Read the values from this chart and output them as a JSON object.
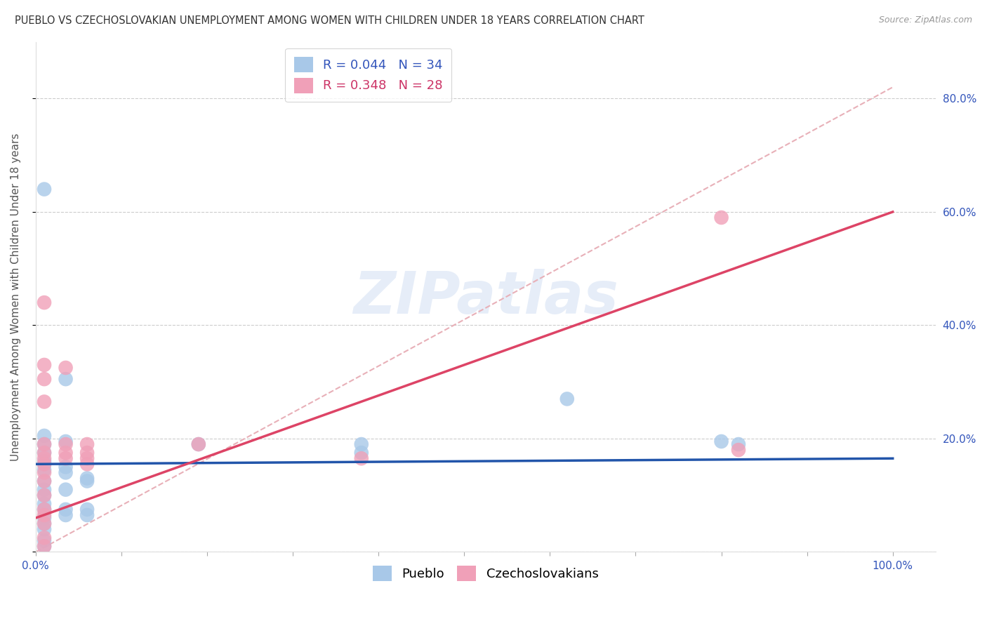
{
  "title": "PUEBLO VS CZECHOSLOVAKIAN UNEMPLOYMENT AMONG WOMEN WITH CHILDREN UNDER 18 YEARS CORRELATION CHART",
  "source": "Source: ZipAtlas.com",
  "ylabel": "Unemployment Among Women with Children Under 18 years",
  "pueblo_R": 0.044,
  "pueblo_N": 34,
  "czech_R": 0.348,
  "czech_N": 28,
  "pueblo_color": "#a8c8e8",
  "czech_color": "#f0a0b8",
  "pueblo_line_color": "#2255aa",
  "czech_line_color": "#dd4466",
  "ref_line_color": "#e8b0b8",
  "pueblo_scatter": [
    [
      0.01,
      0.64
    ],
    [
      0.01,
      0.205
    ],
    [
      0.01,
      0.19
    ],
    [
      0.01,
      0.175
    ],
    [
      0.01,
      0.16
    ],
    [
      0.01,
      0.155
    ],
    [
      0.01,
      0.145
    ],
    [
      0.01,
      0.125
    ],
    [
      0.01,
      0.11
    ],
    [
      0.01,
      0.1
    ],
    [
      0.01,
      0.085
    ],
    [
      0.01,
      0.075
    ],
    [
      0.01,
      0.06
    ],
    [
      0.01,
      0.05
    ],
    [
      0.01,
      0.04
    ],
    [
      0.01,
      0.02
    ],
    [
      0.01,
      0.01
    ],
    [
      0.035,
      0.305
    ],
    [
      0.035,
      0.195
    ],
    [
      0.035,
      0.15
    ],
    [
      0.035,
      0.14
    ],
    [
      0.035,
      0.11
    ],
    [
      0.035,
      0.075
    ],
    [
      0.035,
      0.065
    ],
    [
      0.06,
      0.13
    ],
    [
      0.06,
      0.125
    ],
    [
      0.06,
      0.075
    ],
    [
      0.06,
      0.065
    ],
    [
      0.19,
      0.19
    ],
    [
      0.38,
      0.19
    ],
    [
      0.38,
      0.175
    ],
    [
      0.62,
      0.27
    ],
    [
      0.8,
      0.195
    ],
    [
      0.82,
      0.19
    ]
  ],
  "czech_scatter": [
    [
      0.01,
      0.44
    ],
    [
      0.01,
      0.33
    ],
    [
      0.01,
      0.305
    ],
    [
      0.01,
      0.265
    ],
    [
      0.01,
      0.19
    ],
    [
      0.01,
      0.175
    ],
    [
      0.01,
      0.165
    ],
    [
      0.01,
      0.155
    ],
    [
      0.01,
      0.14
    ],
    [
      0.01,
      0.125
    ],
    [
      0.01,
      0.1
    ],
    [
      0.01,
      0.075
    ],
    [
      0.01,
      0.065
    ],
    [
      0.01,
      0.05
    ],
    [
      0.01,
      0.025
    ],
    [
      0.01,
      0.01
    ],
    [
      0.035,
      0.325
    ],
    [
      0.035,
      0.19
    ],
    [
      0.035,
      0.175
    ],
    [
      0.035,
      0.165
    ],
    [
      0.06,
      0.19
    ],
    [
      0.06,
      0.175
    ],
    [
      0.06,
      0.165
    ],
    [
      0.06,
      0.155
    ],
    [
      0.19,
      0.19
    ],
    [
      0.38,
      0.165
    ],
    [
      0.8,
      0.59
    ],
    [
      0.82,
      0.18
    ]
  ],
  "pueblo_line": [
    0.0,
    1.0,
    0.155,
    0.165
  ],
  "czech_line": [
    0.0,
    1.0,
    0.06,
    0.6
  ],
  "ref_line": [
    0.0,
    1.0,
    0.0,
    0.82
  ],
  "xlim": [
    0.0,
    1.05
  ],
  "ylim": [
    0.0,
    0.9
  ],
  "xticks": [
    0.0,
    0.1,
    0.2,
    0.3,
    0.4,
    0.5,
    0.6,
    0.7,
    0.8,
    0.9,
    1.0
  ],
  "xticklabels_show": {
    "0.0": "0.0%",
    "1.0": "100.0%"
  },
  "ytick_right": [
    0.0,
    0.2,
    0.4,
    0.6,
    0.8
  ],
  "ytick_right_labels": [
    "",
    "20.0%",
    "40.0%",
    "60.0%",
    "80.0%"
  ],
  "watermark_text": "ZIPatlas",
  "title_fontsize": 10.5,
  "source_fontsize": 9,
  "tick_fontsize": 11,
  "ylabel_fontsize": 11,
  "legend_fontsize": 13
}
